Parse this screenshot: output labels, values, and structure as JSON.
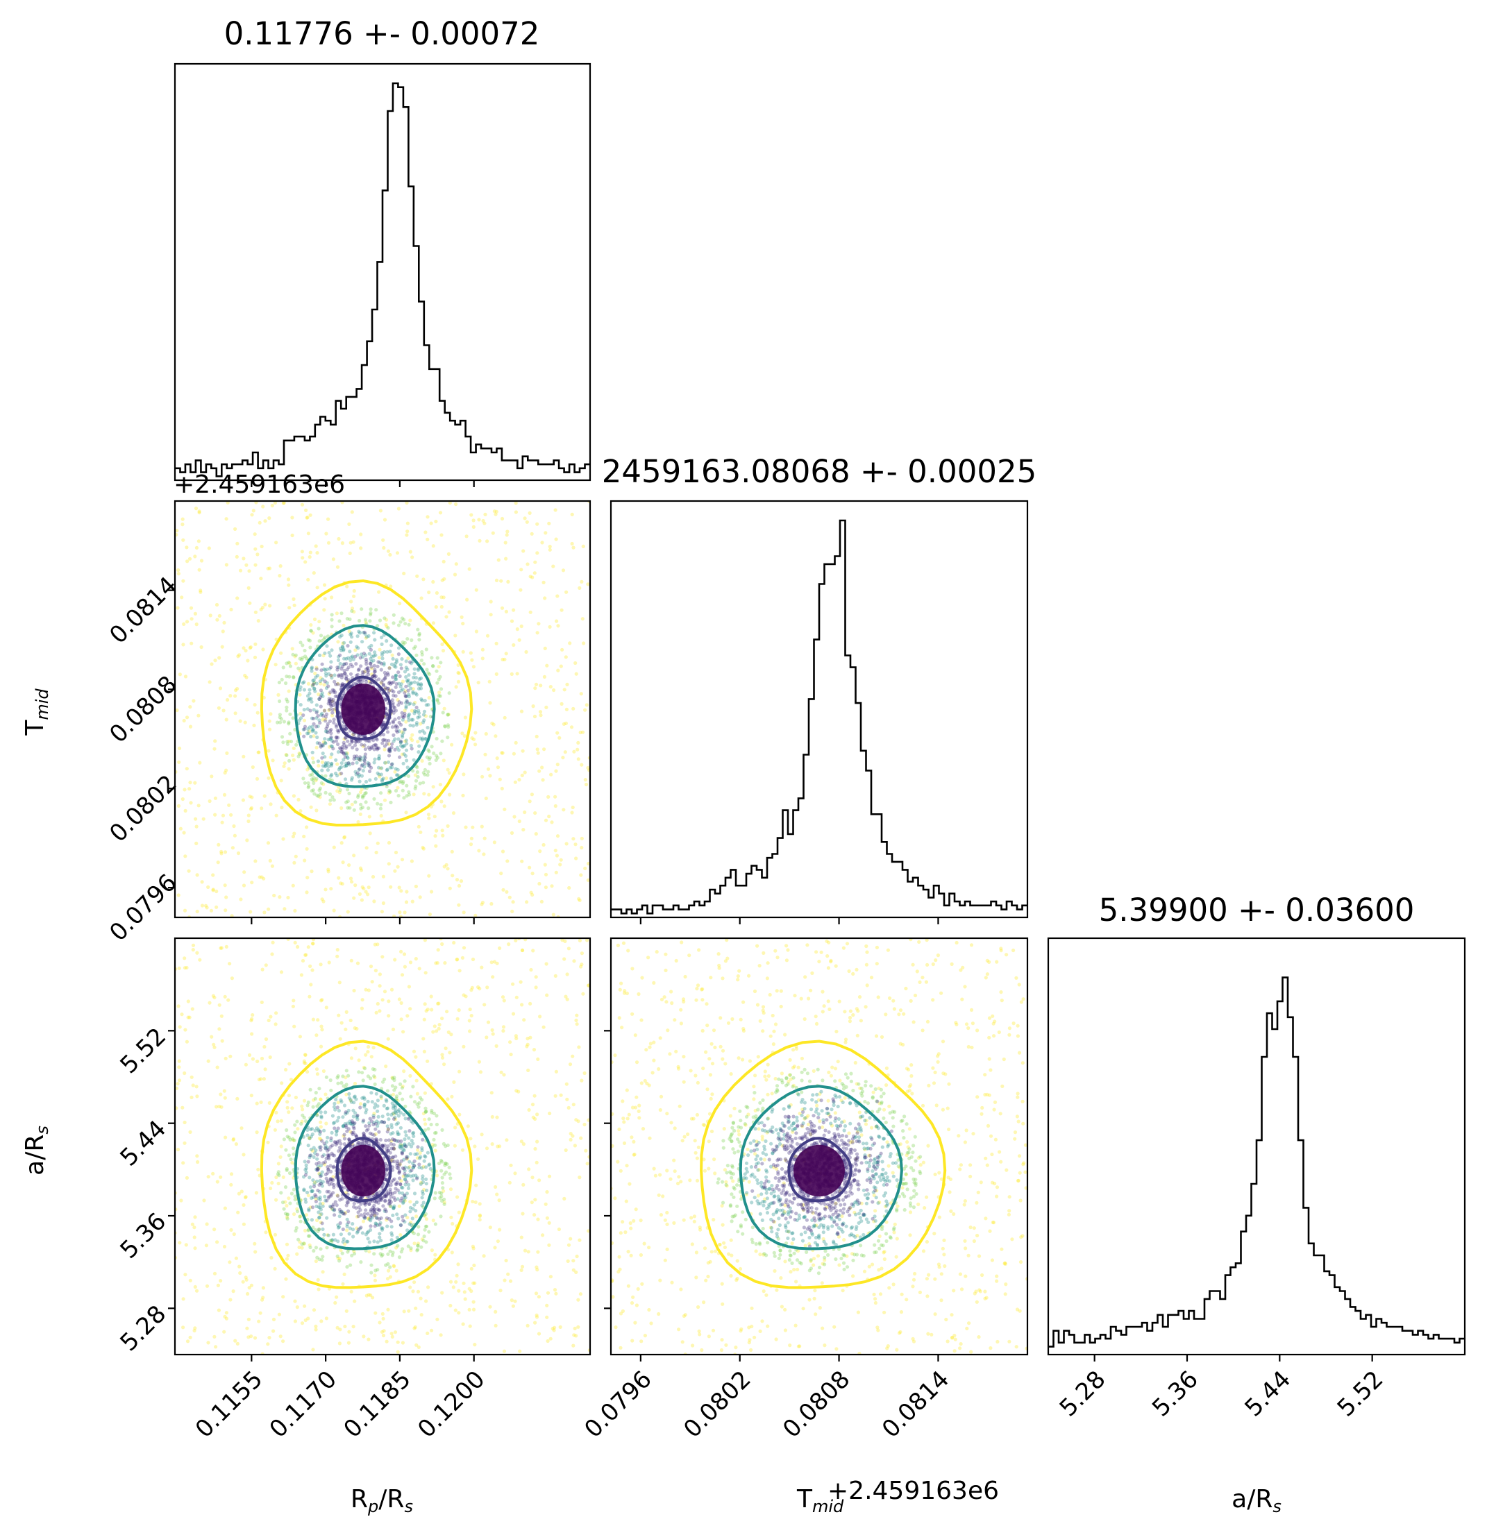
{
  "chart_data": {
    "type": "corner",
    "parameters": [
      {
        "key": "rp",
        "label": "R",
        "sub1": "p",
        "mid": "/R",
        "sub2": "s",
        "title": "0.11776 +- 0.00072",
        "range": [
          0.11395,
          0.12235
        ],
        "ticks": [
          0.1155,
          0.117,
          0.1185,
          0.12
        ],
        "tick_labels": [
          "0.1155",
          "0.1170",
          "0.1185",
          "0.1200"
        ],
        "median": 0.11776,
        "sigma": 0.00072
      },
      {
        "key": "tmid",
        "label": "T",
        "sub1": "mid",
        "mid": "",
        "sub2": "",
        "title": "2459163.08068 +- 0.00025",
        "offset_label": "+2.459163e6",
        "range": [
          0.07942,
          0.08194
        ],
        "ticks": [
          0.0796,
          0.0802,
          0.0808,
          0.0814
        ],
        "tick_labels": [
          "0.0796",
          "0.0802",
          "0.0808",
          "0.0814"
        ],
        "median": 0.08068,
        "sigma": 0.00025
      },
      {
        "key": "ars",
        "label": "a",
        "sub1": "",
        "mid": "/R",
        "sub2": "s",
        "title": "5.39900 +- 0.03600",
        "range": [
          5.24,
          5.6
        ],
        "ticks": [
          5.28,
          5.36,
          5.44,
          5.52
        ],
        "tick_labels": [
          "5.28",
          "5.36",
          "5.44",
          "5.52"
        ],
        "median": 5.399,
        "sigma": 0.036
      }
    ],
    "histograms": [
      {
        "param": "rp",
        "bins": 80,
        "counts": [
          0.03,
          0.02,
          0.04,
          0.02,
          0.05,
          0.02,
          0.04,
          0.03,
          0.01,
          0.04,
          0.03,
          0.04,
          0.04,
          0.05,
          0.04,
          0.07,
          0.03,
          0.05,
          0.03,
          0.05,
          0.04,
          0.1,
          0.1,
          0.11,
          0.11,
          0.1,
          0.11,
          0.14,
          0.16,
          0.15,
          0.14,
          0.2,
          0.18,
          0.21,
          0.21,
          0.23,
          0.29,
          0.35,
          0.43,
          0.55,
          0.73,
          0.93,
          1.0,
          0.99,
          0.94,
          0.74,
          0.59,
          0.45,
          0.34,
          0.28,
          0.28,
          0.2,
          0.17,
          0.15,
          0.14,
          0.15,
          0.11,
          0.07,
          0.09,
          0.08,
          0.08,
          0.07,
          0.08,
          0.05,
          0.05,
          0.05,
          0.03,
          0.06,
          0.05,
          0.05,
          0.04,
          0.04,
          0.04,
          0.05,
          0.03,
          0.02,
          0.04,
          0.02,
          0.03,
          0.04
        ]
      },
      {
        "param": "tmid",
        "bins": 80,
        "counts": [
          0.02,
          0.02,
          0.01,
          0.02,
          0.01,
          0.02,
          0.03,
          0.01,
          0.03,
          0.03,
          0.02,
          0.02,
          0.03,
          0.02,
          0.02,
          0.03,
          0.04,
          0.03,
          0.04,
          0.07,
          0.06,
          0.08,
          0.1,
          0.12,
          0.08,
          0.08,
          0.11,
          0.13,
          0.12,
          0.1,
          0.15,
          0.16,
          0.2,
          0.27,
          0.21,
          0.27,
          0.3,
          0.41,
          0.55,
          0.7,
          0.84,
          0.89,
          0.89,
          0.91,
          1.0,
          0.66,
          0.63,
          0.54,
          0.42,
          0.37,
          0.26,
          0.26,
          0.19,
          0.16,
          0.14,
          0.14,
          0.12,
          0.09,
          0.1,
          0.08,
          0.07,
          0.05,
          0.08,
          0.06,
          0.03,
          0.06,
          0.04,
          0.03,
          0.04,
          0.03,
          0.03,
          0.03,
          0.03,
          0.04,
          0.03,
          0.02,
          0.04,
          0.03,
          0.02,
          0.03
        ]
      },
      {
        "param": "ars",
        "bins": 80,
        "counts": [
          0.02,
          0.06,
          0.03,
          0.06,
          0.05,
          0.03,
          0.03,
          0.05,
          0.03,
          0.04,
          0.05,
          0.04,
          0.07,
          0.06,
          0.05,
          0.07,
          0.07,
          0.07,
          0.08,
          0.06,
          0.08,
          0.1,
          0.07,
          0.1,
          0.1,
          0.11,
          0.09,
          0.11,
          0.09,
          0.09,
          0.14,
          0.16,
          0.16,
          0.14,
          0.2,
          0.22,
          0.23,
          0.31,
          0.35,
          0.43,
          0.54,
          0.75,
          0.86,
          0.82,
          0.89,
          0.95,
          0.85,
          0.75,
          0.54,
          0.37,
          0.28,
          0.25,
          0.25,
          0.21,
          0.2,
          0.17,
          0.16,
          0.14,
          0.12,
          0.11,
          0.09,
          0.1,
          0.07,
          0.09,
          0.08,
          0.07,
          0.07,
          0.07,
          0.06,
          0.06,
          0.05,
          0.06,
          0.05,
          0.04,
          0.05,
          0.04,
          0.04,
          0.04,
          0.03,
          0.04
        ]
      }
    ],
    "scatter_panels": [
      {
        "x": "rp",
        "y": "tmid"
      },
      {
        "x": "rp",
        "y": "ars"
      },
      {
        "x": "tmid",
        "y": "ars"
      }
    ],
    "colors": {
      "contour_1sigma": "#433E85",
      "contour_2sigma": "#21908C",
      "contour_3sigma": "#FDE725",
      "core": "#440154",
      "histogram": "#000000"
    },
    "grid": false
  }
}
